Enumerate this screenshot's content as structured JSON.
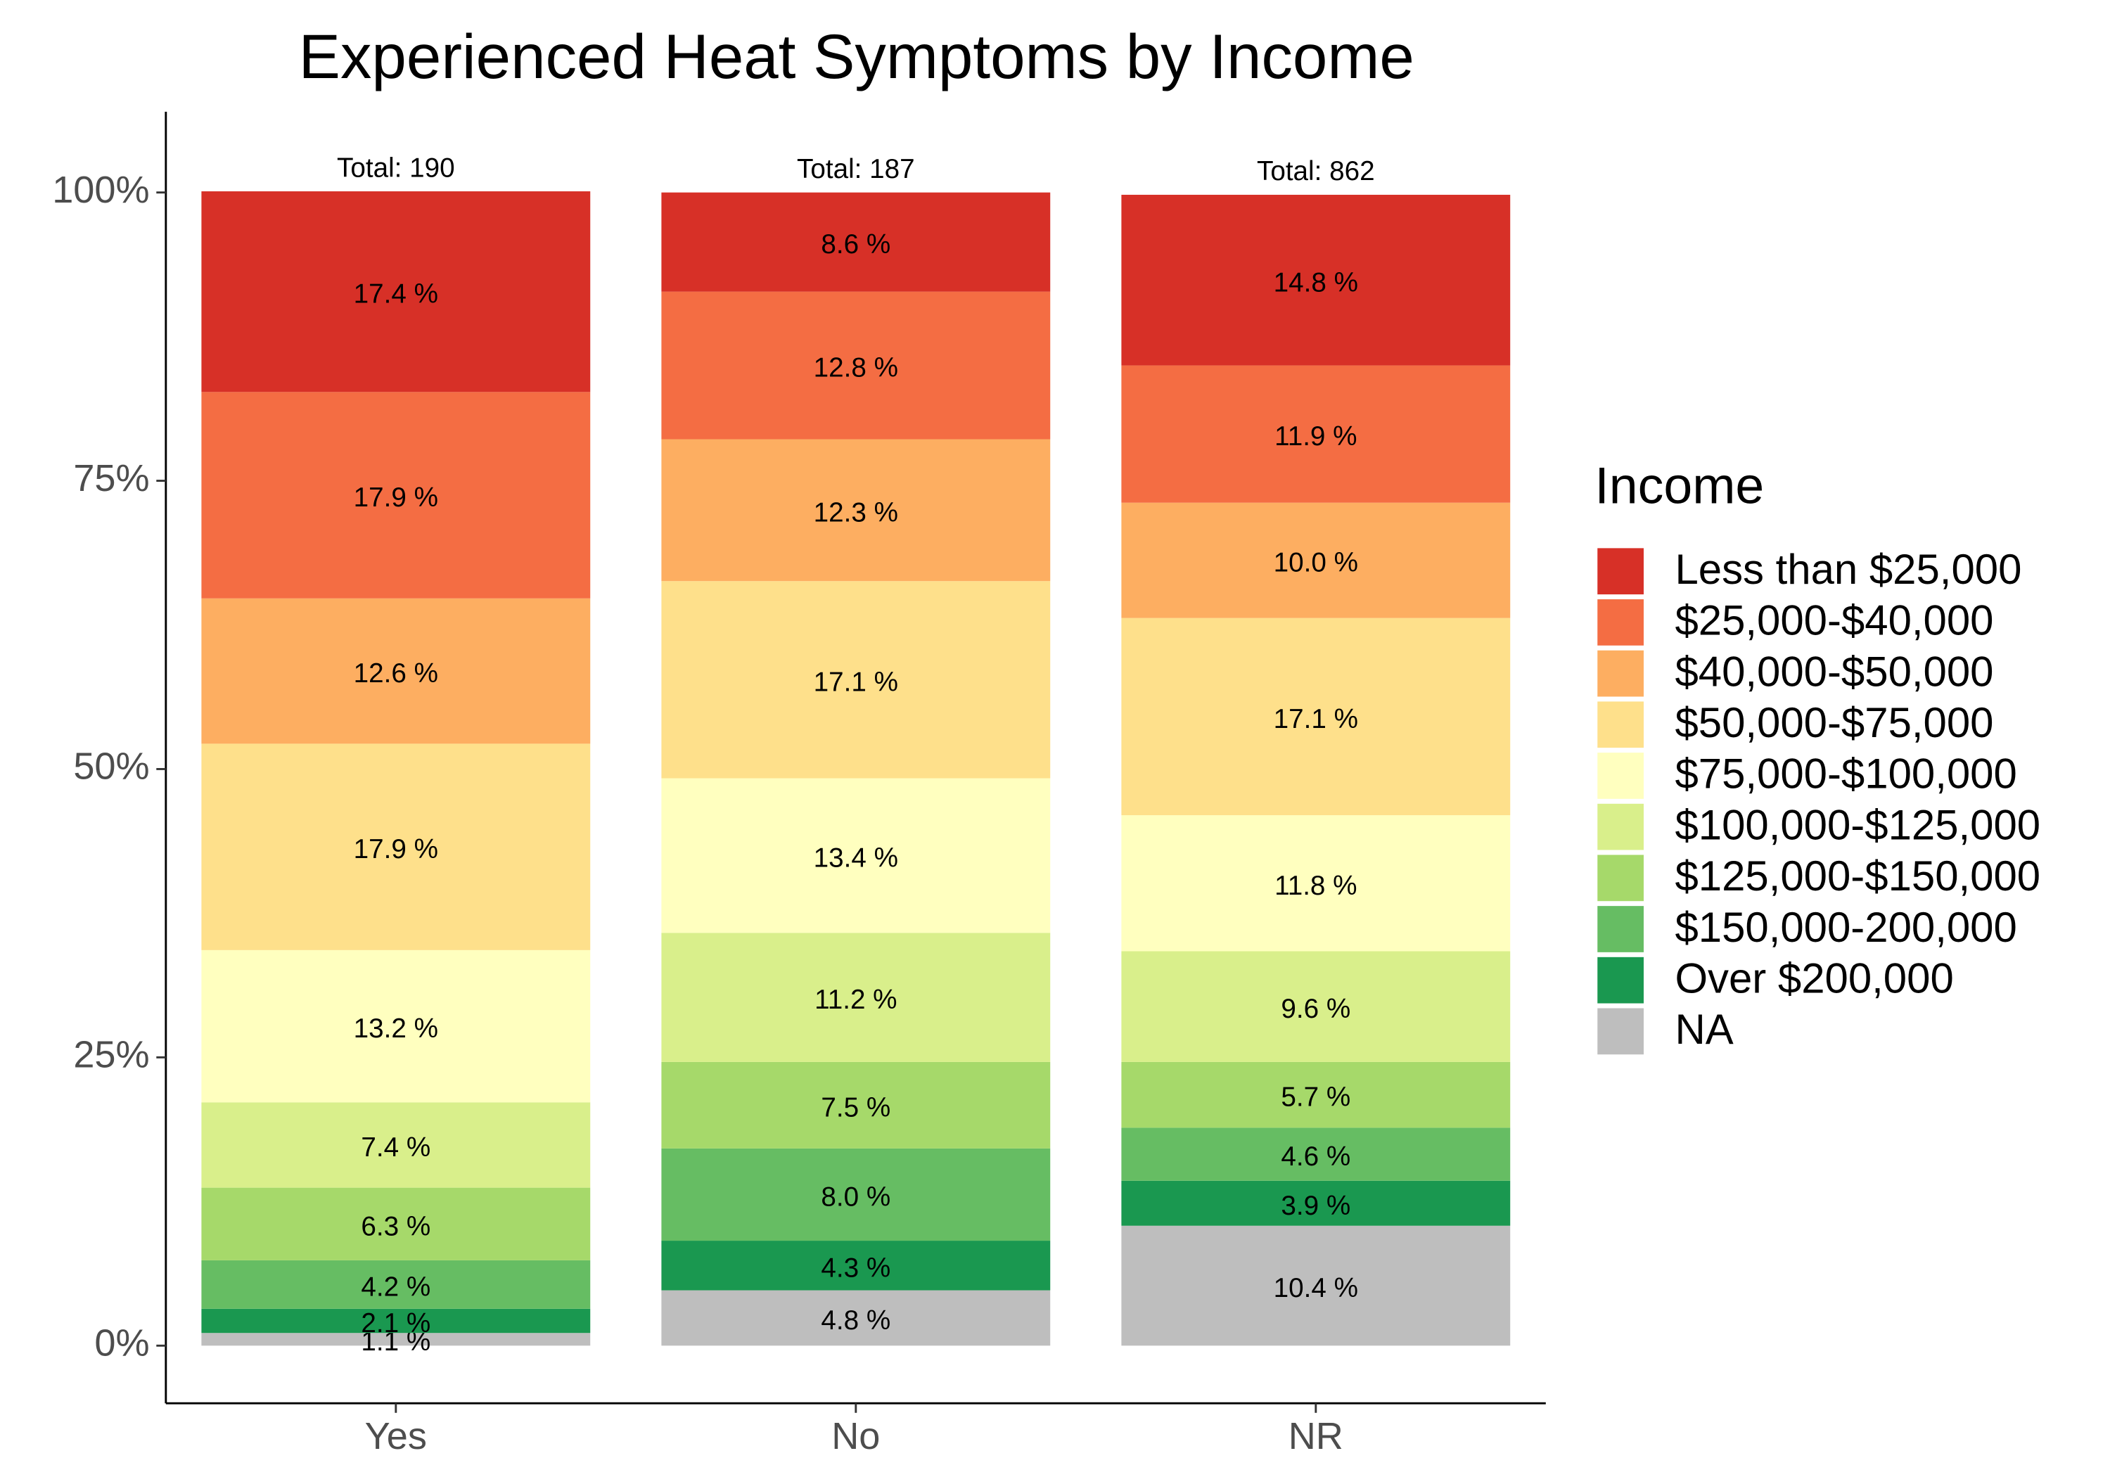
{
  "chart_data": {
    "type": "stacked_bar",
    "title": "Experienced Heat Symptoms by Income",
    "categories": [
      "Yes",
      "No",
      "NR"
    ],
    "annotations": [
      "Total:  190",
      "Total:  187",
      "Total:  862"
    ],
    "legend_title": "Income",
    "legend_position": "right",
    "ylim": [
      -5,
      107
    ],
    "yticks": [
      {
        "value": 0,
        "label": "0%"
      },
      {
        "value": 25,
        "label": "25%"
      },
      {
        "value": 50,
        "label": "50%"
      },
      {
        "value": 75,
        "label": "75%"
      },
      {
        "value": 100,
        "label": "100%"
      }
    ],
    "grid": false,
    "series": [
      {
        "name": "Less than $25,000",
        "color": "#d73027",
        "values": [
          17.4,
          8.6,
          14.8
        ],
        "value_labels": [
          "17.4 %",
          "8.6 %",
          "14.8 %"
        ]
      },
      {
        "name": "$25,000-$40,000",
        "color": "#f46d43",
        "values": [
          17.9,
          12.8,
          11.9
        ],
        "value_labels": [
          "17.9 %",
          "12.8 %",
          "11.9 %"
        ]
      },
      {
        "name": "$40,000-$50,000",
        "color": "#fdae61",
        "values": [
          12.6,
          12.3,
          10.0
        ],
        "value_labels": [
          "12.6 %",
          "12.3 %",
          "10.0 %"
        ]
      },
      {
        "name": "$50,000-$75,000",
        "color": "#fee08b",
        "values": [
          17.9,
          17.1,
          17.1
        ],
        "value_labels": [
          "17.9 %",
          "17.1 %",
          "17.1 %"
        ]
      },
      {
        "name": "$75,000-$100,000",
        "color": "#ffffbf",
        "values": [
          13.2,
          13.4,
          11.8
        ],
        "value_labels": [
          "13.2 %",
          "13.4 %",
          "11.8 %"
        ]
      },
      {
        "name": "$100,000-$125,000",
        "color": "#d9ef8b",
        "values": [
          7.4,
          11.2,
          9.6
        ],
        "value_labels": [
          "7.4 %",
          "11.2 %",
          "9.6 %"
        ]
      },
      {
        "name": "$125,000-$150,000",
        "color": "#a6d96a",
        "values": [
          6.3,
          7.5,
          5.7
        ],
        "value_labels": [
          "6.3 %",
          "7.5 %",
          "5.7 %"
        ]
      },
      {
        "name": "$150,000-200,000",
        "color": "#66bd63",
        "values": [
          4.2,
          8.0,
          4.6
        ],
        "value_labels": [
          "4.2 %",
          "8.0 %",
          "4.6 %"
        ]
      },
      {
        "name": "Over $200,000",
        "color": "#1a9850",
        "values": [
          2.1,
          4.3,
          3.9
        ],
        "value_labels": [
          "2.1 %",
          "4.3 %",
          "3.9 %"
        ]
      },
      {
        "name": "NA",
        "color": "#bebebe",
        "values": [
          1.1,
          4.8,
          10.4
        ],
        "value_labels": [
          "1.1 %",
          "4.8 %",
          "10.4 %"
        ]
      }
    ]
  }
}
